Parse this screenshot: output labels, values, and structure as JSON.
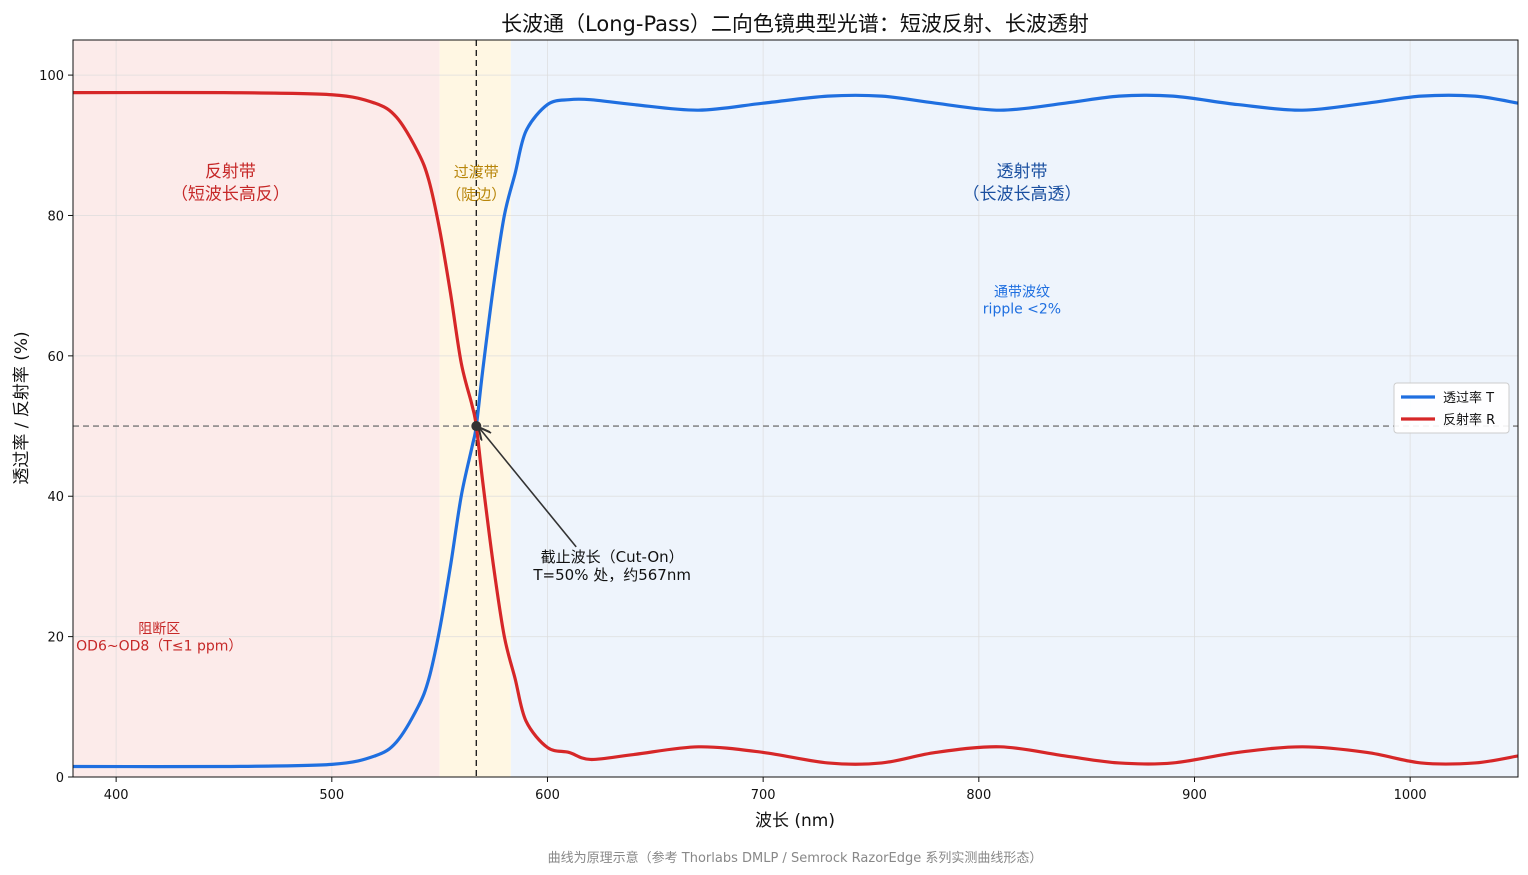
{
  "chart_data": {
    "type": "line",
    "title": "长波通（Long-Pass）二向色镜典型光谱：短波反射、长波透射",
    "xlabel": "波长 (nm)",
    "ylabel": "透过率 / 反射率 (%)",
    "xlim": [
      380,
      1050
    ],
    "ylim": [
      0,
      105
    ],
    "xticks": [
      400,
      500,
      600,
      700,
      800,
      900,
      1000
    ],
    "yticks": [
      0,
      20,
      40,
      60,
      80,
      100
    ],
    "grid": true,
    "legend_position": "center-right",
    "cut_on_wavelength": 567,
    "half_level": 50,
    "series": [
      {
        "name": "透过率 T",
        "color": "#1f6fe0",
        "x": [
          380,
          450,
          500,
          520,
          530,
          540,
          545,
          550,
          555,
          560,
          565,
          567,
          570,
          575,
          580,
          585,
          590,
          600,
          610,
          620,
          640,
          670,
          700,
          730,
          755,
          780,
          810,
          840,
          865,
          890,
          920,
          950,
          980,
          1005,
          1030,
          1050
        ],
        "y": [
          1.5,
          1.5,
          1.8,
          3,
          5,
          10,
          14,
          21,
          30,
          40,
          47,
          50,
          58,
          70,
          80,
          86,
          92,
          95.8,
          96.5,
          96.5,
          95.8,
          95,
          96,
          97,
          97,
          96,
          95,
          96,
          97,
          97,
          95.8,
          95,
          96,
          97,
          97,
          96
        ]
      },
      {
        "name": "反射率 R",
        "color": "#d62728",
        "x": [
          380,
          450,
          500,
          520,
          530,
          540,
          545,
          550,
          555,
          560,
          565,
          567,
          570,
          575,
          580,
          585,
          590,
          600,
          610,
          620,
          640,
          670,
          700,
          730,
          755,
          780,
          810,
          840,
          865,
          890,
          920,
          950,
          980,
          1005,
          1030,
          1050
        ],
        "y": [
          97.5,
          97.5,
          97.2,
          96,
          94,
          89,
          85,
          78,
          69,
          59,
          53,
          50,
          42,
          30,
          20,
          14,
          8,
          4.2,
          3.5,
          2.5,
          3.2,
          4.3,
          3.5,
          2,
          2,
          3.5,
          4.3,
          3,
          2,
          2,
          3.5,
          4.3,
          3.5,
          2,
          2,
          3
        ]
      }
    ],
    "regions": [
      {
        "x_range": [
          380,
          550
        ],
        "color": "#fcebea",
        "title": "反射带",
        "subtitle": "（短波长高反）",
        "text_color": "#c62828"
      },
      {
        "x_range": [
          550,
          583
        ],
        "color": "#fff7e3",
        "title": "过渡带",
        "subtitle": "（陡边）",
        "text_color": "#b8860b"
      },
      {
        "x_range": [
          583,
          1050
        ],
        "color": "#eef4fc",
        "title": "透射带",
        "subtitle": "（长波长高透）",
        "text_color": "#1a4fa0"
      }
    ],
    "annotations": [
      {
        "line1": "截止波长（Cut-On）",
        "line2": "T=50% 处，约567nm",
        "point": [
          567,
          50
        ],
        "text_pos": [
          630,
          31.5
        ]
      },
      {
        "line1": "通带波纹",
        "line2": "ripple <2%",
        "text_pos": [
          820,
          69
        ],
        "color": "#1f6fe0"
      },
      {
        "line1": "阻断区",
        "line2": "OD6~OD8（T≤1 ppm）",
        "text_pos": [
          420,
          21
        ],
        "color": "#c62828"
      }
    ],
    "caption": "曲线为原理示意（参考 Thorlabs DMLP / Semrock RazorEdge 系列实测曲线形态）"
  }
}
